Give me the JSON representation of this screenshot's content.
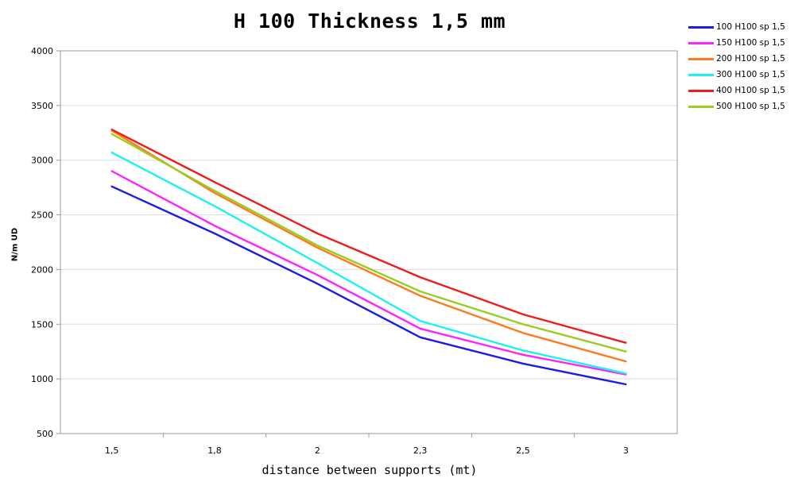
{
  "chart_data": {
    "type": "line",
    "title": "H 100 Thickness 1,5 mm",
    "xlabel": "distance between supports (mt)",
    "ylabel": "N/m UD",
    "categories": [
      "1,5",
      "1,8",
      "2",
      "2,3",
      "2,5",
      "3"
    ],
    "ylim": [
      500,
      4000
    ],
    "yticks": [
      "500",
      "1000",
      "1500",
      "2000",
      "2500",
      "3000",
      "3500",
      "4000"
    ],
    "grid": true,
    "legend_position": "top-right",
    "series": [
      {
        "name": "100 H100 sp 1,5",
        "color": "#1c1ce8",
        "values": [
          2760,
          2330,
          1870,
          1380,
          1140,
          950
        ]
      },
      {
        "name": "150 H100 sp 1,5",
        "color": "#ff22ff",
        "values": [
          2900,
          2400,
          1950,
          1460,
          1220,
          1040
        ]
      },
      {
        "name": "200 H100 sp 1,5",
        "color": "#ff7a1f",
        "values": [
          3270,
          2700,
          2200,
          1760,
          1420,
          1160
        ]
      },
      {
        "name": "300 H100 sp 1,5",
        "color": "#1ff0f0",
        "values": [
          3070,
          2580,
          2060,
          1530,
          1260,
          1050
        ]
      },
      {
        "name": "400 H100 sp 1,5",
        "color": "#ee1c1c",
        "values": [
          3280,
          2800,
          2330,
          1930,
          1590,
          1330
        ]
      },
      {
        "name": "500 H100 sp 1,5",
        "color": "#9acd20",
        "values": [
          3240,
          2720,
          2220,
          1800,
          1500,
          1250
        ]
      }
    ]
  }
}
